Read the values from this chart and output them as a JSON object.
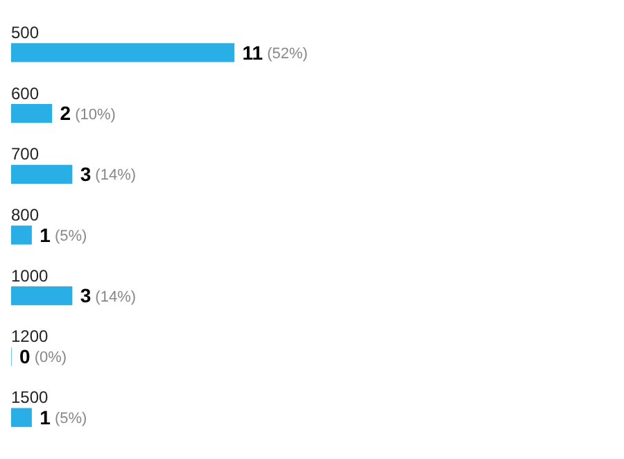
{
  "chart_data": {
    "type": "bar",
    "orientation": "horizontal",
    "categories": [
      "500",
      "600",
      "700",
      "800",
      "1000",
      "1200",
      "1500"
    ],
    "values": [
      11,
      2,
      3,
      1,
      3,
      0,
      1
    ],
    "value_labels": [
      "11 (52%)",
      "2 (10%)",
      "3 (14%)",
      "1 (5%)",
      "3 (14%)",
      "0 (0%)",
      "1 (5%)"
    ],
    "color": "#29aee6"
  }
}
